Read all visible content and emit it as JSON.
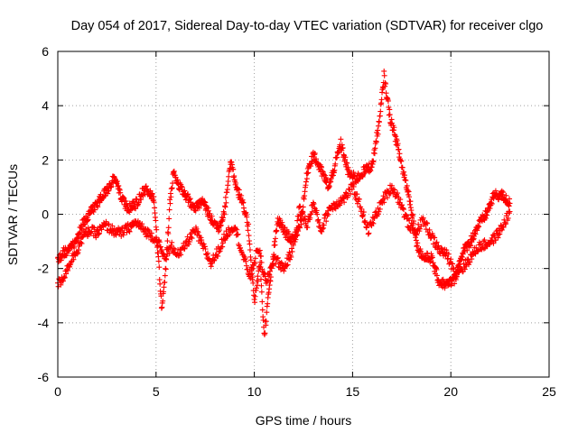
{
  "chart_data": {
    "type": "scatter",
    "title": "Day 054 of 2017, Sidereal Day-to-day VTEC variation (SDTVAR) for receiver clgo",
    "xlabel": "GPS time / hours",
    "ylabel": "SDTVAR / TECUs",
    "xlim": [
      0,
      25
    ],
    "ylim": [
      -6,
      6
    ],
    "xticks": [
      0,
      5,
      10,
      15,
      20,
      25
    ],
    "yticks": [
      -6,
      -4,
      -2,
      0,
      2,
      4,
      6
    ],
    "xtick_labels": [
      "0",
      "5",
      "10",
      "15",
      "20",
      "25"
    ],
    "ytick_labels": [
      "-6",
      "-4",
      "-2",
      "0",
      "2",
      "4",
      "6"
    ],
    "grid": true,
    "marker": "+",
    "color": "#ff0000",
    "series": [
      {
        "name": "SDTVAR",
        "track_a": [
          [
            0.0,
            -1.7
          ],
          [
            0.3,
            -1.4
          ],
          [
            0.6,
            -1.3
          ],
          [
            1.0,
            -0.9
          ],
          [
            1.3,
            -0.3
          ],
          [
            1.8,
            0.2
          ],
          [
            2.2,
            0.6
          ],
          [
            2.6,
            1.0
          ],
          [
            2.9,
            1.4
          ],
          [
            3.2,
            0.6
          ],
          [
            3.6,
            0.2
          ],
          [
            4.0,
            0.4
          ],
          [
            4.3,
            0.8
          ],
          [
            4.6,
            0.9
          ],
          [
            4.9,
            0.6
          ],
          [
            5.1,
            -1.5
          ],
          [
            5.3,
            -3.5
          ],
          [
            5.5,
            -2.0
          ],
          [
            5.7,
            0.4
          ],
          [
            5.9,
            1.6
          ],
          [
            6.2,
            1.0
          ],
          [
            6.6,
            0.6
          ],
          [
            7.0,
            0.2
          ],
          [
            7.4,
            0.5
          ],
          [
            7.8,
            -0.2
          ],
          [
            8.2,
            -0.5
          ],
          [
            8.5,
            0.2
          ],
          [
            8.8,
            2.0
          ],
          [
            9.1,
            1.0
          ],
          [
            9.4,
            0.4
          ],
          [
            9.7,
            -0.5
          ],
          [
            10.0,
            -3.2
          ],
          [
            10.3,
            -1.8
          ],
          [
            10.5,
            -4.5
          ],
          [
            10.8,
            -2.5
          ],
          [
            11.2,
            -0.2
          ],
          [
            11.6,
            -0.7
          ],
          [
            12.0,
            -1.0
          ],
          [
            12.4,
            -0.2
          ],
          [
            12.7,
            1.6
          ],
          [
            13.0,
            2.2
          ],
          [
            13.4,
            1.6
          ],
          [
            13.8,
            1.0
          ],
          [
            14.1,
            1.8
          ],
          [
            14.4,
            2.6
          ],
          [
            14.8,
            1.5
          ],
          [
            15.2,
            1.3
          ],
          [
            15.6,
            1.6
          ],
          [
            16.0,
            1.8
          ],
          [
            16.4,
            3.6
          ],
          [
            16.6,
            5.1
          ],
          [
            16.9,
            3.6
          ],
          [
            17.2,
            2.8
          ],
          [
            17.5,
            1.8
          ],
          [
            17.9,
            0.6
          ],
          [
            18.3,
            -1.2
          ],
          [
            18.6,
            -1.6
          ],
          [
            19.0,
            -1.6
          ],
          [
            19.4,
            -2.5
          ],
          [
            19.8,
            -2.6
          ],
          [
            20.2,
            -2.4
          ],
          [
            20.6,
            -1.4
          ],
          [
            21.0,
            -1.0
          ],
          [
            21.4,
            -0.4
          ],
          [
            21.8,
            0.0
          ],
          [
            22.2,
            0.7
          ],
          [
            22.6,
            0.7
          ],
          [
            23.0,
            0.4
          ]
        ],
        "track_b": [
          [
            0.0,
            -2.6
          ],
          [
            0.3,
            -2.3
          ],
          [
            0.6,
            -1.8
          ],
          [
            1.0,
            -1.3
          ],
          [
            1.3,
            -0.8
          ],
          [
            1.6,
            -0.6
          ],
          [
            2.0,
            -0.7
          ],
          [
            2.4,
            -0.4
          ],
          [
            2.8,
            -0.6
          ],
          [
            3.2,
            -0.7
          ],
          [
            3.6,
            -0.5
          ],
          [
            4.0,
            -0.3
          ],
          [
            4.4,
            -0.6
          ],
          [
            4.8,
            -0.8
          ],
          [
            5.1,
            -1.0
          ],
          [
            5.4,
            -1.6
          ],
          [
            5.8,
            -1.2
          ],
          [
            6.2,
            -1.5
          ],
          [
            6.6,
            -1.0
          ],
          [
            7.0,
            -0.6
          ],
          [
            7.4,
            -1.2
          ],
          [
            7.8,
            -1.8
          ],
          [
            8.2,
            -1.3
          ],
          [
            8.6,
            -0.7
          ],
          [
            9.0,
            -0.4
          ],
          [
            9.4,
            -1.5
          ],
          [
            9.8,
            -2.3
          ],
          [
            10.2,
            -1.2
          ],
          [
            10.6,
            -2.6
          ],
          [
            11.0,
            -1.6
          ],
          [
            11.5,
            -2.0
          ],
          [
            11.9,
            -1.4
          ],
          [
            12.3,
            0.2
          ],
          [
            12.7,
            -0.4
          ],
          [
            13.0,
            0.4
          ],
          [
            13.4,
            -0.6
          ],
          [
            13.8,
            0.2
          ],
          [
            14.2,
            0.4
          ],
          [
            14.6,
            0.6
          ],
          [
            15.0,
            1.0
          ],
          [
            15.4,
            0.3
          ],
          [
            15.8,
            -0.6
          ],
          [
            16.2,
            0.0
          ],
          [
            16.6,
            0.6
          ],
          [
            17.0,
            1.0
          ],
          [
            17.4,
            0.5
          ],
          [
            17.8,
            -0.3
          ],
          [
            18.2,
            -0.7
          ],
          [
            18.6,
            -0.2
          ],
          [
            19.0,
            -0.8
          ],
          [
            19.4,
            -1.3
          ],
          [
            19.8,
            -1.5
          ],
          [
            20.2,
            -2.1
          ],
          [
            20.6,
            -2.0
          ],
          [
            21.0,
            -1.6
          ],
          [
            21.4,
            -1.2
          ],
          [
            21.8,
            -1.1
          ],
          [
            22.2,
            -0.9
          ],
          [
            22.6,
            -0.5
          ],
          [
            23.0,
            0.1
          ]
        ]
      }
    ]
  }
}
